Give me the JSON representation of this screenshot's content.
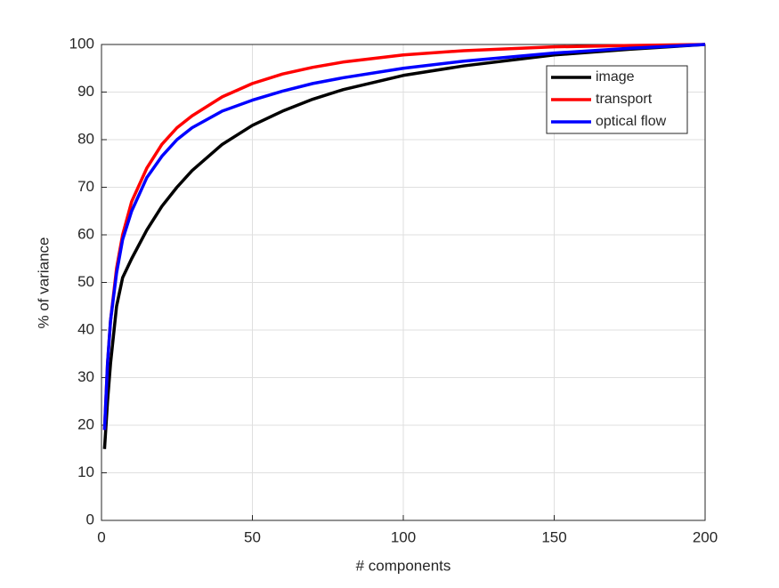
{
  "chart_data": {
    "type": "line",
    "xlabel": "# components",
    "ylabel": "% of variance",
    "x": [
      1,
      2,
      3,
      5,
      7,
      10,
      15,
      20,
      25,
      30,
      40,
      50,
      60,
      70,
      80,
      100,
      120,
      150,
      175,
      200
    ],
    "series": [
      {
        "name": "image",
        "color": "#000000",
        "values": [
          15,
          25,
          33,
          45,
          51,
          55,
          61,
          66,
          70,
          73.5,
          79,
          83,
          86,
          88.5,
          90.5,
          93.5,
          95.5,
          97.8,
          99,
          100
        ]
      },
      {
        "name": "transport",
        "color": "#ff0000",
        "values": [
          19,
          33,
          42,
          53,
          60,
          67,
          74,
          79,
          82.5,
          85,
          89,
          91.8,
          93.8,
          95.2,
          96.3,
          97.8,
          98.7,
          99.5,
          99.8,
          100
        ]
      },
      {
        "name": "optical flow",
        "color": "#0000ff",
        "values": [
          19,
          33,
          42,
          52,
          59,
          65,
          72,
          76.5,
          80,
          82.5,
          86,
          88.3,
          90.2,
          91.8,
          93,
          95,
          96.5,
          98.2,
          99.2,
          100
        ]
      }
    ],
    "xlim": [
      0,
      200
    ],
    "xticks": [
      0,
      50,
      100,
      150,
      200
    ],
    "ylim": [
      0,
      100
    ],
    "yticks": [
      0,
      10,
      20,
      30,
      40,
      50,
      60,
      70,
      80,
      90,
      100
    ],
    "grid": true,
    "legend": "northeast"
  }
}
